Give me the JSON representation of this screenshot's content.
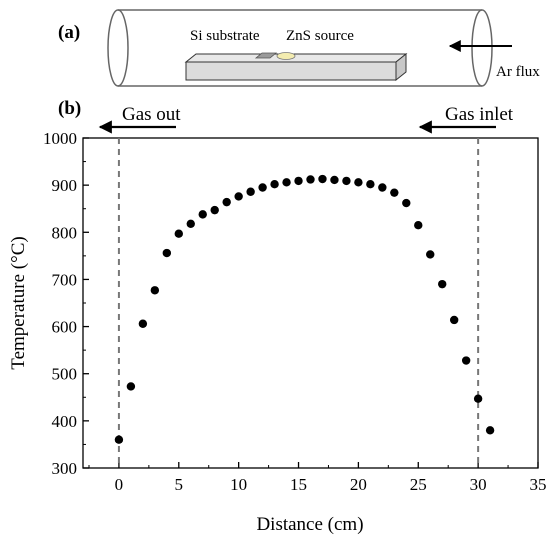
{
  "schematic": {
    "panel_label": "(a)",
    "substrate_label": "Si substrate",
    "source_label": "ZnS source",
    "flux_label": "Ar flux"
  },
  "chart_data": {
    "type": "scatter",
    "panel_label": "(b)",
    "xlabel": "Distance (cm)",
    "ylabel": "Temperature (°C)",
    "xlim": [
      -3,
      35
    ],
    "ylim": [
      300,
      1000
    ],
    "xticks": [
      0,
      5,
      10,
      15,
      20,
      25,
      30,
      35
    ],
    "yticks": [
      300,
      400,
      500,
      600,
      700,
      800,
      900,
      1000
    ],
    "grid": false,
    "marker_color": "#000000",
    "series": [
      {
        "x": [
          0,
          1,
          2,
          3,
          4,
          5,
          6,
          7,
          8,
          9,
          10,
          11,
          12,
          13,
          14,
          15,
          16,
          17,
          18,
          19,
          20,
          21,
          22,
          23,
          24,
          25,
          26,
          27,
          28,
          29,
          30,
          31
        ],
        "y": [
          360,
          473,
          606,
          677,
          756,
          797,
          818,
          838,
          847,
          864,
          876,
          886,
          895,
          902,
          906,
          909,
          912,
          913,
          911,
          909,
          906,
          902,
          895,
          884,
          862,
          815,
          753,
          690,
          614,
          528,
          447,
          380
        ]
      }
    ],
    "annotations": {
      "gas_out": {
        "label": "Gas out",
        "x": 0
      },
      "gas_inlet": {
        "label": "Gas inlet",
        "x": 30
      }
    }
  }
}
